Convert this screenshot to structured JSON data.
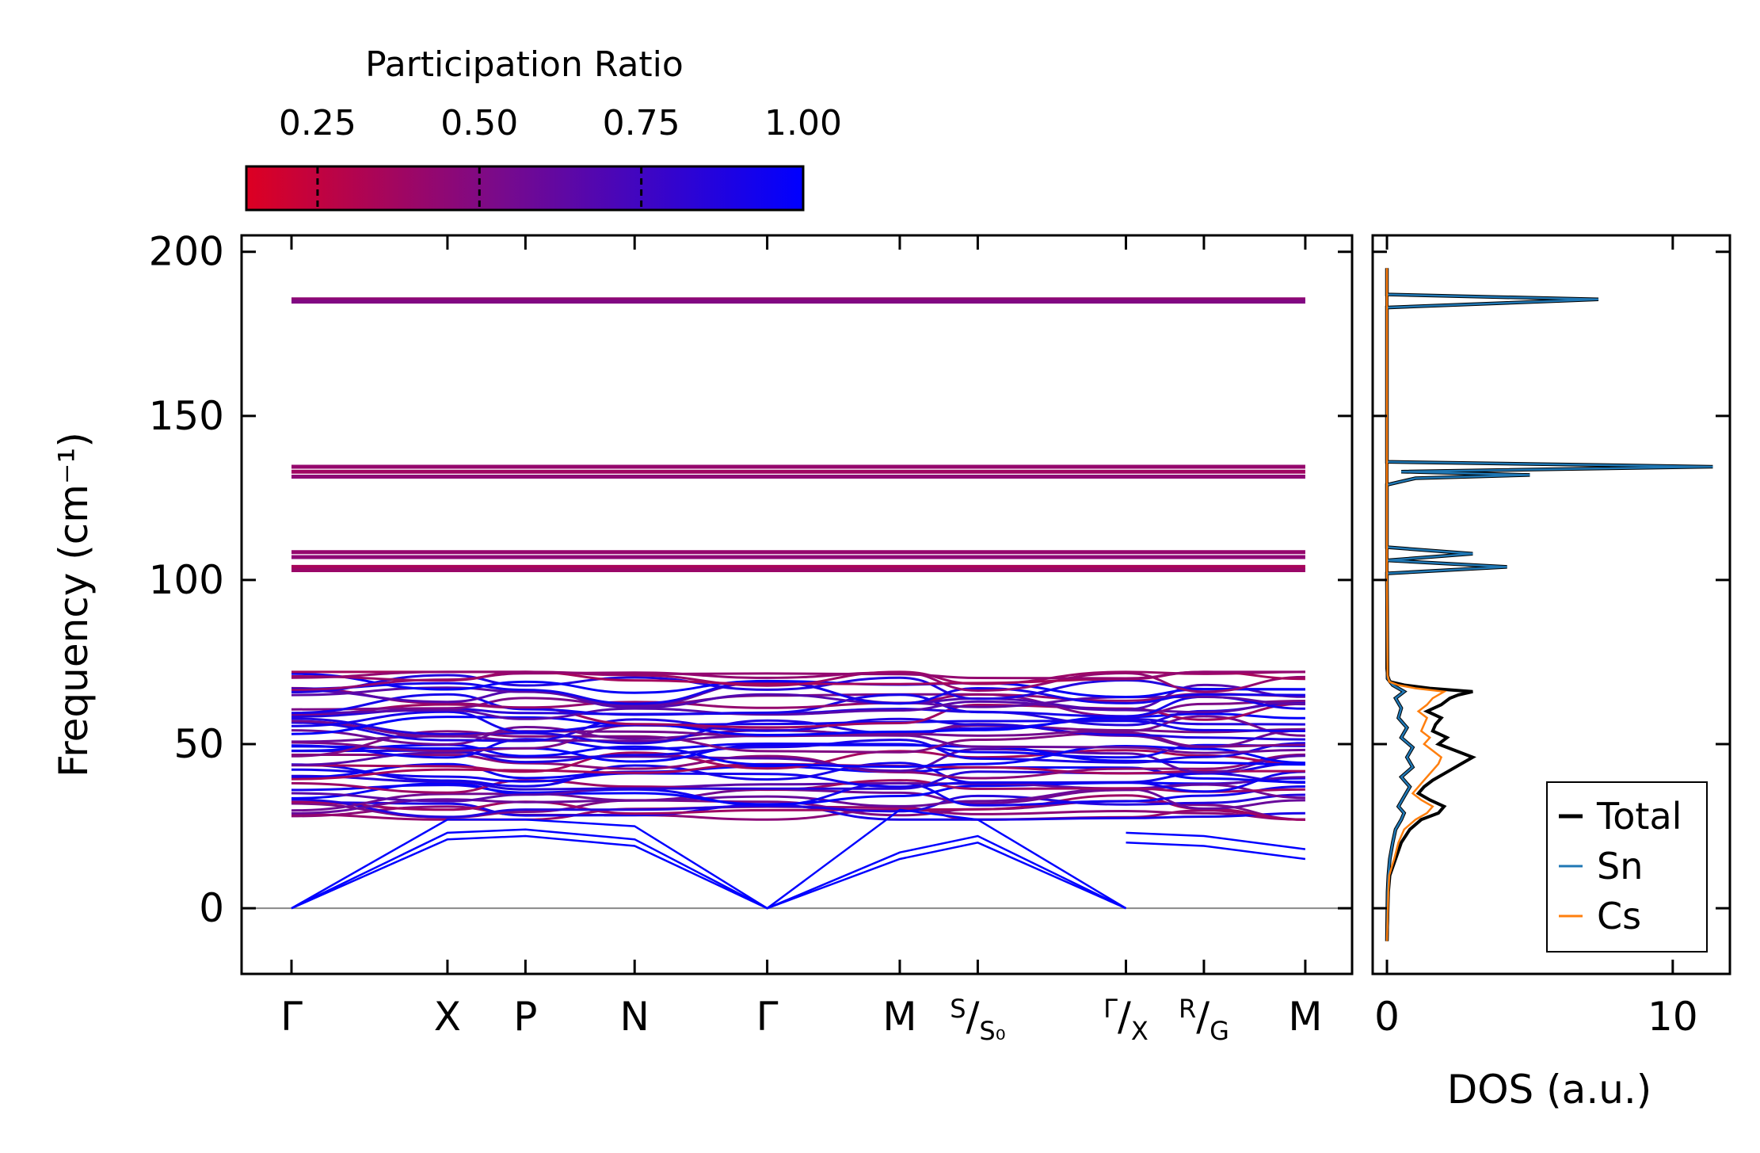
{
  "colorbar": {
    "title": "Participation Ratio",
    "ticks": [
      0.25,
      0.5,
      0.75,
      1.0
    ],
    "tick_labels": [
      "0.25",
      "0.50",
      "0.75",
      "1.00"
    ],
    "range": [
      0.14,
      1.0
    ],
    "colors": {
      "low": "#dd0022",
      "mid": "#7a0a8a",
      "high": "#0000ff"
    }
  },
  "chart_data": [
    {
      "type": "line",
      "title": "",
      "ylabel": "Frequency (cm⁻¹)",
      "ylim": [
        -20,
        205
      ],
      "yticks": [
        0,
        50,
        100,
        150,
        200
      ],
      "ytick_labels": [
        "0",
        "50",
        "100",
        "150",
        "200"
      ],
      "kpath": [
        {
          "label": "Γ",
          "x": 0.0
        },
        {
          "label": "X",
          "x": 1.0
        },
        {
          "label": "P",
          "x": 1.5
        },
        {
          "label": "N",
          "x": 2.2
        },
        {
          "label": "Γ",
          "x": 3.05
        },
        {
          "label": "M",
          "x": 3.9
        },
        {
          "label": "S|S₀",
          "x": 4.4
        },
        {
          "label": "Γ|X",
          "x": 5.35
        },
        {
          "label": "R|G",
          "x": 5.85
        },
        {
          "label": "M",
          "x": 6.5
        }
      ],
      "x_range": [
        -0.32,
        6.8
      ],
      "flat_bands": [
        {
          "name": "band-185",
          "value": 185.5,
          "pr": 0.45
        },
        {
          "name": "band-184",
          "value": 184.8,
          "pr": 0.5
        },
        {
          "name": "band-134",
          "value": 134.5,
          "pr": 0.42
        },
        {
          "name": "band-133",
          "value": 133.0,
          "pr": 0.38
        },
        {
          "name": "band-131",
          "value": 131.5,
          "pr": 0.45
        },
        {
          "name": "band-108",
          "value": 108.5,
          "pr": 0.42
        },
        {
          "name": "band-107",
          "value": 107.0,
          "pr": 0.45
        },
        {
          "name": "band-104",
          "value": 104.0,
          "pr": 0.35
        },
        {
          "name": "band-103",
          "value": 103.0,
          "pr": 0.4
        }
      ],
      "acoustic_bands": [
        {
          "name": "acoustic-1",
          "points": [
            [
              0,
              0
            ],
            [
              1.0,
              21
            ],
            [
              1.5,
              22
            ],
            [
              2.2,
              19
            ],
            [
              3.05,
              0
            ],
            [
              3.9,
              15
            ],
            [
              4.4,
              20
            ],
            [
              5.35,
              0
            ]
          ]
        },
        {
          "name": "acoustic-2",
          "points": [
            [
              0,
              0
            ],
            [
              1.0,
              23
            ],
            [
              1.5,
              24
            ],
            [
              2.2,
              21
            ],
            [
              3.05,
              0
            ],
            [
              3.9,
              17
            ],
            [
              4.4,
              22
            ],
            [
              5.35,
              0
            ]
          ]
        },
        {
          "name": "acoustic-3",
          "points": [
            [
              0,
              0
            ],
            [
              1.0,
              27
            ],
            [
              1.5,
              27
            ],
            [
              2.2,
              25
            ],
            [
              3.05,
              0
            ],
            [
              3.9,
              30
            ],
            [
              4.4,
              27
            ],
            [
              5.35,
              0
            ]
          ]
        }
      ],
      "low_bands_after_break": [
        {
          "name": "rg-m-band-1",
          "points": [
            [
              5.35,
              20
            ],
            [
              5.85,
              19
            ],
            [
              6.5,
              15
            ]
          ]
        },
        {
          "name": "rg-m-band-2",
          "points": [
            [
              5.35,
              23
            ],
            [
              5.85,
              22
            ],
            [
              6.5,
              18
            ]
          ]
        }
      ],
      "optical_cluster": {
        "min": 27,
        "max": 72,
        "count": 48,
        "description": "dense optical phonon bands between about 27 and 72 cm-1"
      },
      "zero_line": 0
    },
    {
      "type": "line",
      "xlabel": "DOS (a.u.)",
      "xlim": [
        -0.5,
        12
      ],
      "xticks": [
        0,
        10
      ],
      "xtick_labels": [
        "0",
        "10"
      ],
      "ylim": [
        -20,
        205
      ],
      "series": [
        {
          "name": "Total",
          "color": "#000000",
          "points": [
            [
              0,
              -10
            ],
            [
              0.05,
              5
            ],
            [
              0.1,
              10
            ],
            [
              0.3,
              15
            ],
            [
              0.5,
              20
            ],
            [
              0.8,
              24
            ],
            [
              1.2,
              27
            ],
            [
              1.8,
              29
            ],
            [
              2.0,
              31
            ],
            [
              1.5,
              33
            ],
            [
              1.1,
              35
            ],
            [
              1.3,
              37
            ],
            [
              1.6,
              39
            ],
            [
              2.2,
              42
            ],
            [
              2.6,
              44
            ],
            [
              3.0,
              46
            ],
            [
              2.4,
              48
            ],
            [
              1.8,
              50
            ],
            [
              2.1,
              52
            ],
            [
              1.6,
              54
            ],
            [
              1.7,
              56
            ],
            [
              1.9,
              58
            ],
            [
              1.4,
              60
            ],
            [
              1.9,
              62
            ],
            [
              2.2,
              64
            ],
            [
              2.5,
              65
            ],
            [
              3.0,
              66
            ],
            [
              1.5,
              67
            ],
            [
              0.6,
              68
            ],
            [
              0.1,
              69
            ],
            [
              0.02,
              71
            ],
            [
              0.0,
              73
            ],
            [
              0.0,
              100
            ],
            [
              0.0,
              150
            ],
            [
              0.0,
              195
            ]
          ]
        },
        {
          "name": "Sn",
          "color": "#1f77b4",
          "points": [
            [
              0,
              -10
            ],
            [
              0.02,
              5
            ],
            [
              0.05,
              10
            ],
            [
              0.1,
              15
            ],
            [
              0.2,
              20
            ],
            [
              0.3,
              24
            ],
            [
              0.5,
              27
            ],
            [
              0.6,
              29
            ],
            [
              0.4,
              31
            ],
            [
              0.6,
              34
            ],
            [
              0.8,
              37
            ],
            [
              0.5,
              40
            ],
            [
              0.9,
              43
            ],
            [
              0.7,
              46
            ],
            [
              0.9,
              49
            ],
            [
              0.5,
              52
            ],
            [
              0.7,
              55
            ],
            [
              0.4,
              58
            ],
            [
              0.5,
              61
            ],
            [
              0.3,
              64
            ],
            [
              0.6,
              66
            ],
            [
              0.2,
              68
            ],
            [
              0.02,
              70
            ],
            [
              0.0,
              100
            ],
            [
              0.0,
              102
            ],
            [
              4.2,
              104
            ],
            [
              0.0,
              106
            ],
            [
              3.0,
              108
            ],
            [
              0.0,
              110
            ],
            [
              0.0,
              129
            ],
            [
              1.0,
              131
            ],
            [
              5.0,
              132
            ],
            [
              0.5,
              133
            ],
            [
              11.4,
              134.5
            ],
            [
              0.0,
              136
            ],
            [
              0.0,
              183
            ],
            [
              7.4,
              185.5
            ],
            [
              0.0,
              187
            ],
            [
              0.0,
              195
            ]
          ]
        },
        {
          "name": "Cs",
          "color": "#ff7f0e",
          "points": [
            [
              0,
              -10
            ],
            [
              0.05,
              5
            ],
            [
              0.08,
              10
            ],
            [
              0.25,
              15
            ],
            [
              0.4,
              20
            ],
            [
              0.6,
              24
            ],
            [
              1.0,
              27
            ],
            [
              1.4,
              29
            ],
            [
              1.6,
              31
            ],
            [
              1.2,
              33
            ],
            [
              0.9,
              35
            ],
            [
              1.1,
              37
            ],
            [
              1.3,
              39
            ],
            [
              1.6,
              42
            ],
            [
              1.8,
              44
            ],
            [
              1.9,
              46
            ],
            [
              1.6,
              48
            ],
            [
              1.3,
              50
            ],
            [
              1.5,
              52
            ],
            [
              1.2,
              54
            ],
            [
              1.3,
              56
            ],
            [
              1.4,
              58
            ],
            [
              1.1,
              60
            ],
            [
              1.4,
              62
            ],
            [
              1.6,
              64
            ],
            [
              1.8,
              65
            ],
            [
              2.0,
              66
            ],
            [
              1.0,
              67
            ],
            [
              0.4,
              68
            ],
            [
              0.08,
              69
            ],
            [
              0.02,
              71
            ],
            [
              0.0,
              100
            ],
            [
              0.0,
              195
            ]
          ]
        }
      ],
      "legend": {
        "position": "bottom-right",
        "entries": [
          "Total",
          "Sn",
          "Cs"
        ]
      }
    }
  ]
}
